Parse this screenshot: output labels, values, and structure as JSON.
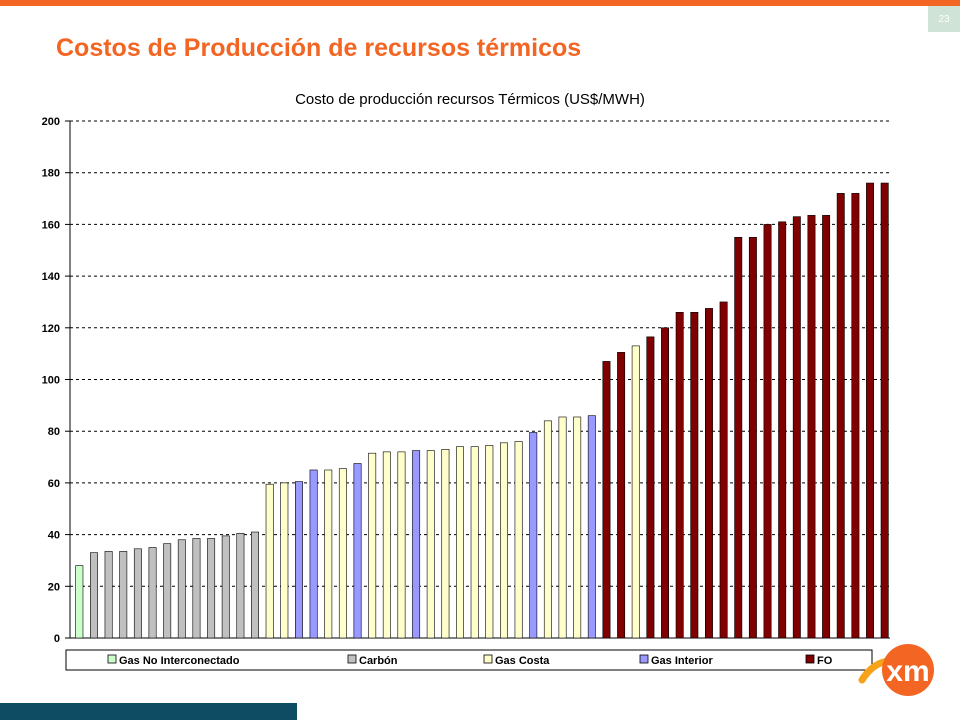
{
  "slide": {
    "title": "Costos de Producción de recursos térmicos",
    "page_number": "23"
  },
  "colors": {
    "accent": "#f26522",
    "footer": "#0e4c63",
    "page_badge": "#cfe3d6"
  },
  "logo": {
    "text": "xm",
    "icon": "xm-logo-icon"
  },
  "chart_data": {
    "type": "bar",
    "title": "Costo de producción recursos Térmicos (US$/MWH)",
    "xlabel": "",
    "ylabel": "",
    "ylim": [
      0,
      200
    ],
    "yticks": [
      0,
      20,
      40,
      60,
      80,
      100,
      120,
      140,
      160,
      180,
      200
    ],
    "grid": true,
    "legend_position": "bottom",
    "series": [
      {
        "name": "Gas No Interconectado",
        "color": "#ccffcc"
      },
      {
        "name": "Carbón",
        "color": "#c0c0c0"
      },
      {
        "name": "Gas Costa",
        "color": "#ffffcc"
      },
      {
        "name": "Gas Interior",
        "color": "#9999ff"
      },
      {
        "name": "FO",
        "color": "#800000"
      }
    ],
    "bars": [
      {
        "series": "Gas No Interconectado",
        "value": 28
      },
      {
        "series": "Carbón",
        "value": 33
      },
      {
        "series": "Carbón",
        "value": 33.5
      },
      {
        "series": "Carbón",
        "value": 33.5
      },
      {
        "series": "Carbón",
        "value": 34.5
      },
      {
        "series": "Carbón",
        "value": 35
      },
      {
        "series": "Carbón",
        "value": 36.5
      },
      {
        "series": "Carbón",
        "value": 38
      },
      {
        "series": "Carbón",
        "value": 38.5
      },
      {
        "series": "Carbón",
        "value": 38.5
      },
      {
        "series": "Carbón",
        "value": 39.5
      },
      {
        "series": "Carbón",
        "value": 40.5
      },
      {
        "series": "Carbón",
        "value": 41
      },
      {
        "series": "Gas Costa",
        "value": 59.5
      },
      {
        "series": "Gas Costa",
        "value": 60
      },
      {
        "series": "Gas Interior",
        "value": 60.5
      },
      {
        "series": "Gas Interior",
        "value": 65
      },
      {
        "series": "Gas Costa",
        "value": 65
      },
      {
        "series": "Gas Costa",
        "value": 65.5
      },
      {
        "series": "Gas Interior",
        "value": 67.5
      },
      {
        "series": "Gas Costa",
        "value": 71.5
      },
      {
        "series": "Gas Costa",
        "value": 72
      },
      {
        "series": "Gas Costa",
        "value": 72
      },
      {
        "series": "Gas Interior",
        "value": 72.5
      },
      {
        "series": "Gas Costa",
        "value": 72.5
      },
      {
        "series": "Gas Costa",
        "value": 73
      },
      {
        "series": "Gas Costa",
        "value": 74
      },
      {
        "series": "Gas Costa",
        "value": 74
      },
      {
        "series": "Gas Costa",
        "value": 74.5
      },
      {
        "series": "Gas Costa",
        "value": 75.5
      },
      {
        "series": "Gas Costa",
        "value": 76
      },
      {
        "series": "Gas Interior",
        "value": 79.5
      },
      {
        "series": "Gas Costa",
        "value": 84
      },
      {
        "series": "Gas Costa",
        "value": 85.5
      },
      {
        "series": "Gas Costa",
        "value": 85.5
      },
      {
        "series": "Gas Interior",
        "value": 86
      },
      {
        "series": "FO",
        "value": 107
      },
      {
        "series": "FO",
        "value": 110.5
      },
      {
        "series": "Gas Costa",
        "value": 113
      },
      {
        "series": "FO",
        "value": 116.5
      },
      {
        "series": "FO",
        "value": 120
      },
      {
        "series": "FO",
        "value": 126
      },
      {
        "series": "FO",
        "value": 126
      },
      {
        "series": "FO",
        "value": 127.5
      },
      {
        "series": "FO",
        "value": 130
      },
      {
        "series": "FO",
        "value": 155
      },
      {
        "series": "FO",
        "value": 155
      },
      {
        "series": "FO",
        "value": 160
      },
      {
        "series": "FO",
        "value": 161
      },
      {
        "series": "FO",
        "value": 163
      },
      {
        "series": "FO",
        "value": 163.5
      },
      {
        "series": "FO",
        "value": 163.5
      },
      {
        "series": "FO",
        "value": 172
      },
      {
        "series": "FO",
        "value": 172
      },
      {
        "series": "FO",
        "value": 176
      },
      {
        "series": "FO",
        "value": 176
      }
    ]
  }
}
